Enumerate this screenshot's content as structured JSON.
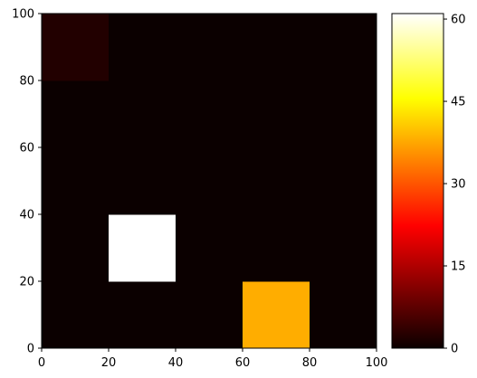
{
  "chart_data": {
    "type": "heatmap",
    "colormap": "hot",
    "x_edges": [
      0,
      20,
      40,
      60,
      80,
      100
    ],
    "y_edges": [
      0,
      20,
      40,
      60,
      80,
      100
    ],
    "values": [
      [
        0,
        0,
        0,
        38,
        0
      ],
      [
        0,
        61,
        0,
        0,
        0
      ],
      [
        0,
        0,
        0,
        0,
        0
      ],
      [
        0,
        0,
        0,
        0,
        0
      ],
      [
        2,
        0,
        0,
        0,
        0
      ]
    ],
    "values_row_order": "bottom-to-top",
    "xlim": [
      0,
      100
    ],
    "ylim": [
      0,
      100
    ],
    "x_ticks": [
      "0",
      "20",
      "40",
      "60",
      "80",
      "100"
    ],
    "y_ticks": [
      "0",
      "20",
      "40",
      "60",
      "80",
      "100"
    ],
    "colorbar": {
      "range": [
        0,
        61
      ],
      "ticks": [
        0,
        15,
        30,
        45,
        60
      ],
      "tick_labels": [
        "0",
        "15",
        "30",
        "45",
        "60"
      ]
    },
    "title": "",
    "xlabel": "",
    "ylabel": "",
    "grid": false
  }
}
